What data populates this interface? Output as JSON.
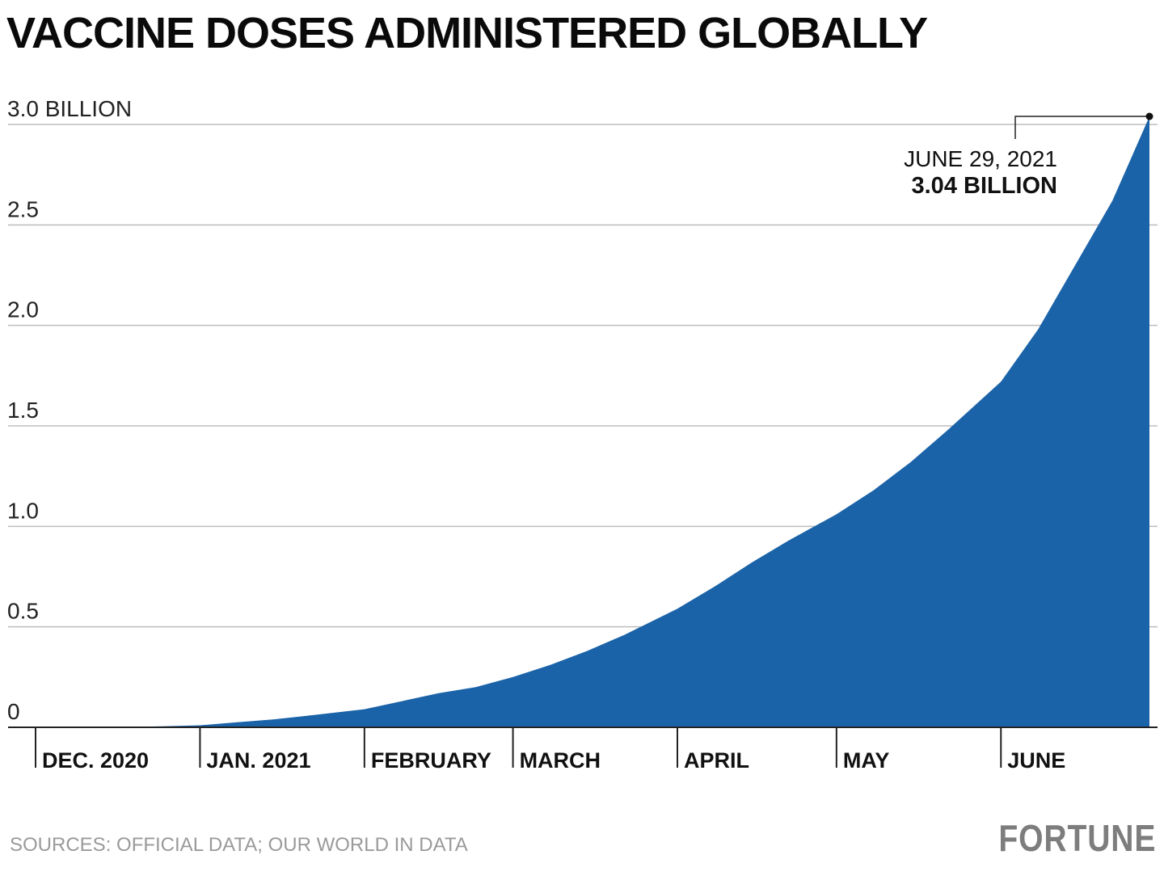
{
  "chart_data": {
    "type": "area",
    "title": "VACCINE DOSES ADMINISTERED GLOBALLY",
    "ylabel": "",
    "xlabel": "",
    "ylim": [
      0,
      3.1
    ],
    "xlim": [
      "2020-12-01",
      "2021-06-30"
    ],
    "yticks": [
      {
        "value": 0,
        "label": "0"
      },
      {
        "value": 0.5,
        "label": "0.5"
      },
      {
        "value": 1.0,
        "label": "1.0"
      },
      {
        "value": 1.5,
        "label": "1.5"
      },
      {
        "value": 2.0,
        "label": "2.0"
      },
      {
        "value": 2.5,
        "label": "2.5"
      },
      {
        "value": 3.0,
        "label": "3.0 BILLION"
      }
    ],
    "xticks": [
      {
        "date": "2020-12-01",
        "label": "DEC. 2020"
      },
      {
        "date": "2021-01-01",
        "label": "JAN. 2021"
      },
      {
        "date": "2021-02-01",
        "label": "FEBRUARY"
      },
      {
        "date": "2021-03-01",
        "label": "MARCH"
      },
      {
        "date": "2021-04-01",
        "label": "APRIL"
      },
      {
        "date": "2021-05-01",
        "label": "MAY"
      },
      {
        "date": "2021-06-01",
        "label": "JUNE"
      }
    ],
    "grid": true,
    "fill_color": "#1b63a8",
    "series": [
      {
        "x": [
          "2020-12-01",
          "2020-12-15",
          "2020-12-25",
          "2021-01-01",
          "2021-01-08",
          "2021-01-15",
          "2021-01-22",
          "2021-02-01",
          "2021-02-08",
          "2021-02-15",
          "2021-02-22",
          "2021-03-01",
          "2021-03-08",
          "2021-03-15",
          "2021-03-22",
          "2021-04-01",
          "2021-04-08",
          "2021-04-15",
          "2021-04-22",
          "2021-05-01",
          "2021-05-08",
          "2021-05-15",
          "2021-05-22",
          "2021-06-01",
          "2021-06-08",
          "2021-06-15",
          "2021-06-22",
          "2021-06-29"
        ],
        "y": [
          0,
          0,
          0.005,
          0.01,
          0.025,
          0.04,
          0.06,
          0.09,
          0.13,
          0.17,
          0.2,
          0.25,
          0.31,
          0.38,
          0.46,
          0.59,
          0.7,
          0.82,
          0.93,
          1.06,
          1.18,
          1.32,
          1.48,
          1.72,
          1.98,
          2.3,
          2.62,
          3.04
        ]
      }
    ],
    "annotation": {
      "date": "JUNE 29, 2021",
      "value": "3.04 BILLION",
      "x": "2021-06-29",
      "y": 3.04
    }
  },
  "footer": {
    "source": "SOURCES: OFFICIAL DATA; OUR WORLD IN DATA",
    "logo": "FORTUNE"
  }
}
